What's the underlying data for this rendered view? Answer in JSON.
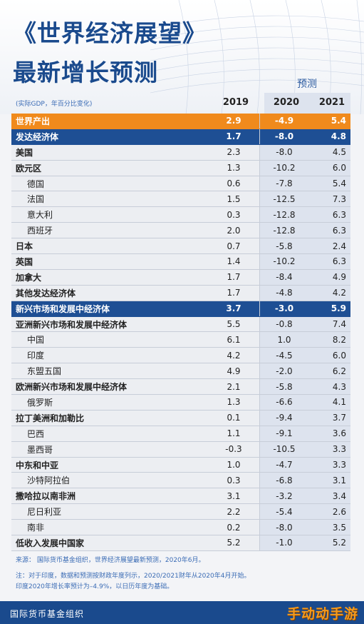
{
  "title_line1": "《世界经济展望》",
  "title_line2": "最新增长预测",
  "forecast_label": "预测",
  "units_label": "(实际GDP，年百分比变化)",
  "years": [
    "2019",
    "2020",
    "2021"
  ],
  "rows": [
    {
      "name": "世界产出",
      "v2019": "2.9",
      "v2020": "-4.9",
      "v2021": "5.4",
      "style": "world"
    },
    {
      "name": "发达经济体",
      "v2019": "1.7",
      "v2020": "-8.0",
      "v2021": "4.8",
      "style": "group"
    },
    {
      "name": "美国",
      "v2019": "2.3",
      "v2020": "-8.0",
      "v2021": "4.5",
      "style": "bold"
    },
    {
      "name": "欧元区",
      "v2019": "1.3",
      "v2020": "-10.2",
      "v2021": "6.0",
      "style": "bold"
    },
    {
      "name": "德国",
      "v2019": "0.6",
      "v2020": "-7.8",
      "v2021": "5.4",
      "style": "indent"
    },
    {
      "name": "法国",
      "v2019": "1.5",
      "v2020": "-12.5",
      "v2021": "7.3",
      "style": "indent"
    },
    {
      "name": "意大利",
      "v2019": "0.3",
      "v2020": "-12.8",
      "v2021": "6.3",
      "style": "indent"
    },
    {
      "name": "西班牙",
      "v2019": "2.0",
      "v2020": "-12.8",
      "v2021": "6.3",
      "style": "indent"
    },
    {
      "name": "日本",
      "v2019": "0.7",
      "v2020": "-5.8",
      "v2021": "2.4",
      "style": "bold"
    },
    {
      "name": "英国",
      "v2019": "1.4",
      "v2020": "-10.2",
      "v2021": "6.3",
      "style": "bold"
    },
    {
      "name": "加拿大",
      "v2019": "1.7",
      "v2020": "-8.4",
      "v2021": "4.9",
      "style": "bold"
    },
    {
      "name": "其他发达经济体",
      "v2019": "1.7",
      "v2020": "-4.8",
      "v2021": "4.2",
      "style": "bold"
    },
    {
      "name": "新兴市场和发展中经济体",
      "v2019": "3.7",
      "v2020": "-3.0",
      "v2021": "5.9",
      "style": "group"
    },
    {
      "name": "亚洲新兴市场和发展中经济体",
      "v2019": "5.5",
      "v2020": "-0.8",
      "v2021": "7.4",
      "style": "bold"
    },
    {
      "name": "中国",
      "v2019": "6.1",
      "v2020": "1.0",
      "v2021": "8.2",
      "style": "indent"
    },
    {
      "name": "印度",
      "v2019": "4.2",
      "v2020": "-4.5",
      "v2021": "6.0",
      "style": "indent"
    },
    {
      "name": "东盟五国",
      "v2019": "4.9",
      "v2020": "-2.0",
      "v2021": "6.2",
      "style": "indent"
    },
    {
      "name": "欧洲新兴市场和发展中经济体",
      "v2019": "2.1",
      "v2020": "-5.8",
      "v2021": "4.3",
      "style": "bold"
    },
    {
      "name": "俄罗斯",
      "v2019": "1.3",
      "v2020": "-6.6",
      "v2021": "4.1",
      "style": "indent"
    },
    {
      "name": "拉丁美洲和加勒比",
      "v2019": "0.1",
      "v2020": "-9.4",
      "v2021": "3.7",
      "style": "bold"
    },
    {
      "name": "巴西",
      "v2019": "1.1",
      "v2020": "-9.1",
      "v2021": "3.6",
      "style": "indent"
    },
    {
      "name": "墨西哥",
      "v2019": "-0.3",
      "v2020": "-10.5",
      "v2021": "3.3",
      "style": "indent"
    },
    {
      "name": "中东和中亚",
      "v2019": "1.0",
      "v2020": "-4.7",
      "v2021": "3.3",
      "style": "bold"
    },
    {
      "name": "沙特阿拉伯",
      "v2019": "0.3",
      "v2020": "-6.8",
      "v2021": "3.1",
      "style": "indent"
    },
    {
      "name": "撒哈拉以南非洲",
      "v2019": "3.1",
      "v2020": "-3.2",
      "v2021": "3.4",
      "style": "bold"
    },
    {
      "name": "尼日利亚",
      "v2019": "2.2",
      "v2020": "-5.4",
      "v2021": "2.6",
      "style": "indent"
    },
    {
      "name": "南非",
      "v2019": "0.2",
      "v2020": "-8.0",
      "v2021": "3.5",
      "style": "indent"
    },
    {
      "name": "低收入发展中国家",
      "v2019": "5.2",
      "v2020": "-1.0",
      "v2021": "5.2",
      "style": "bold"
    }
  ],
  "source": "来源：  国际货币基金组织，世界经济展望最新预测，2020年6月。",
  "note_line1": "注：对于印度，数据和预测按财政年度列示，2020/2021财年从2020年4月开始。",
  "note_line2": "印度2020年增长率预计为–4.9%，以日历年度为基础。",
  "footer": "国际货币基金组织",
  "watermark": "手动动手游",
  "colors": {
    "brand_blue": "#1a4a8d",
    "orange": "#f08a1c",
    "group_blue": "#1e4f94"
  }
}
